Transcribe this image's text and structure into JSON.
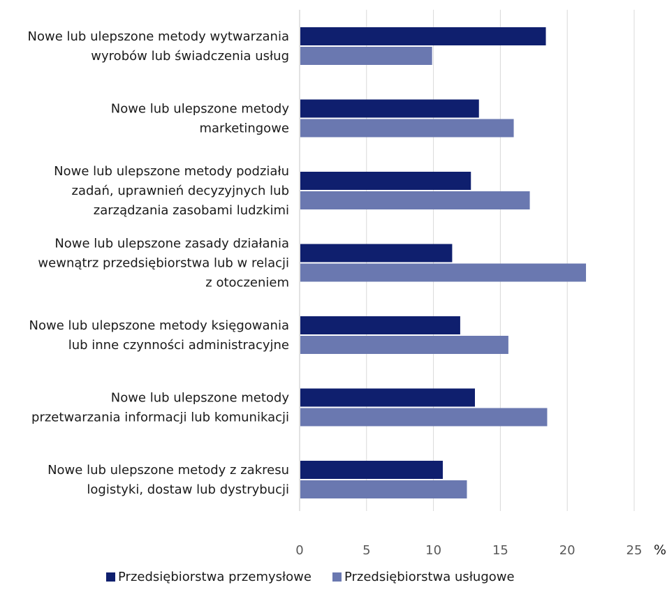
{
  "chart_data": {
    "type": "bar",
    "orientation": "horizontal",
    "categories": [
      [
        "Nowe lub ulepszone metody wytwarzania",
        "wyrobów lub świadczenia usług"
      ],
      [
        "Nowe lub ulepszone metody",
        "marketingowe"
      ],
      [
        "Nowe lub ulepszone metody podziału",
        "zadań, uprawnień decyzyjnych lub",
        "zarządzania zasobami ludzkimi"
      ],
      [
        "Nowe lub ulepszone zasady działania",
        "wewnątrz przedsiębiorstwa lub w relacji",
        "z otoczeniem"
      ],
      [
        "Nowe lub ulepszone metody księgowania",
        "lub inne czynności administracyjne"
      ],
      [
        "Nowe lub ulepszone metody",
        "przetwarzania informacji lub komunikacji"
      ],
      [
        "Nowe lub ulepszone metody z zakresu",
        "logistyki, dostaw lub dystrybucji"
      ]
    ],
    "series": [
      {
        "name": "Przedsiębiorstwa przemysłowe",
        "color": "#0f1f6e",
        "values": [
          18.4,
          13.4,
          12.8,
          11.4,
          12.0,
          13.1,
          10.7
        ]
      },
      {
        "name": "Przedsiębiorstwa usługowe",
        "color": "#6a78b0",
        "values": [
          9.9,
          16.0,
          17.2,
          21.4,
          15.6,
          18.5,
          12.5
        ]
      }
    ],
    "xlim": [
      0,
      25
    ],
    "xticks": [
      0,
      5,
      10,
      15,
      20,
      25
    ],
    "x_unit": "%",
    "grid": true,
    "gridline_color": "#d9d9d9",
    "legend_position": "bottom"
  }
}
